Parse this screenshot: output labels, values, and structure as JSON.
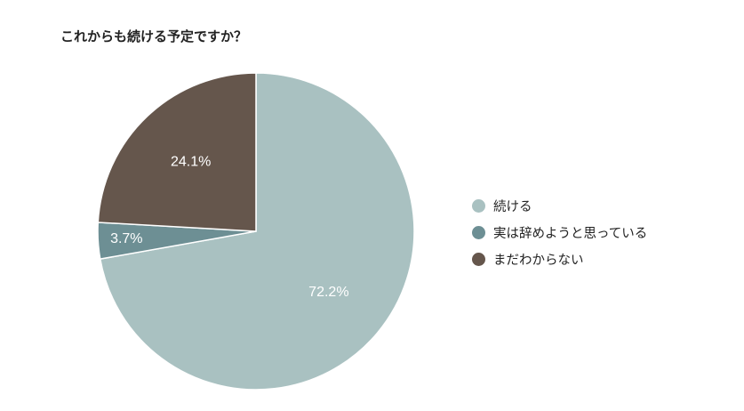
{
  "chart_data": {
    "type": "pie",
    "title": "これからも続ける予定ですか？",
    "slices": [
      {
        "label": "続ける",
        "value": 72.2,
        "display": "72.2%",
        "color": "#a9c1c1"
      },
      {
        "label": "実は辞めようと思っている",
        "value": 3.7,
        "display": "3.7%",
        "color": "#6d8f94"
      },
      {
        "label": "まだわからない",
        "value": 24.1,
        "display": "24.1%",
        "color": "#65564c"
      }
    ],
    "legend_position": "right"
  }
}
